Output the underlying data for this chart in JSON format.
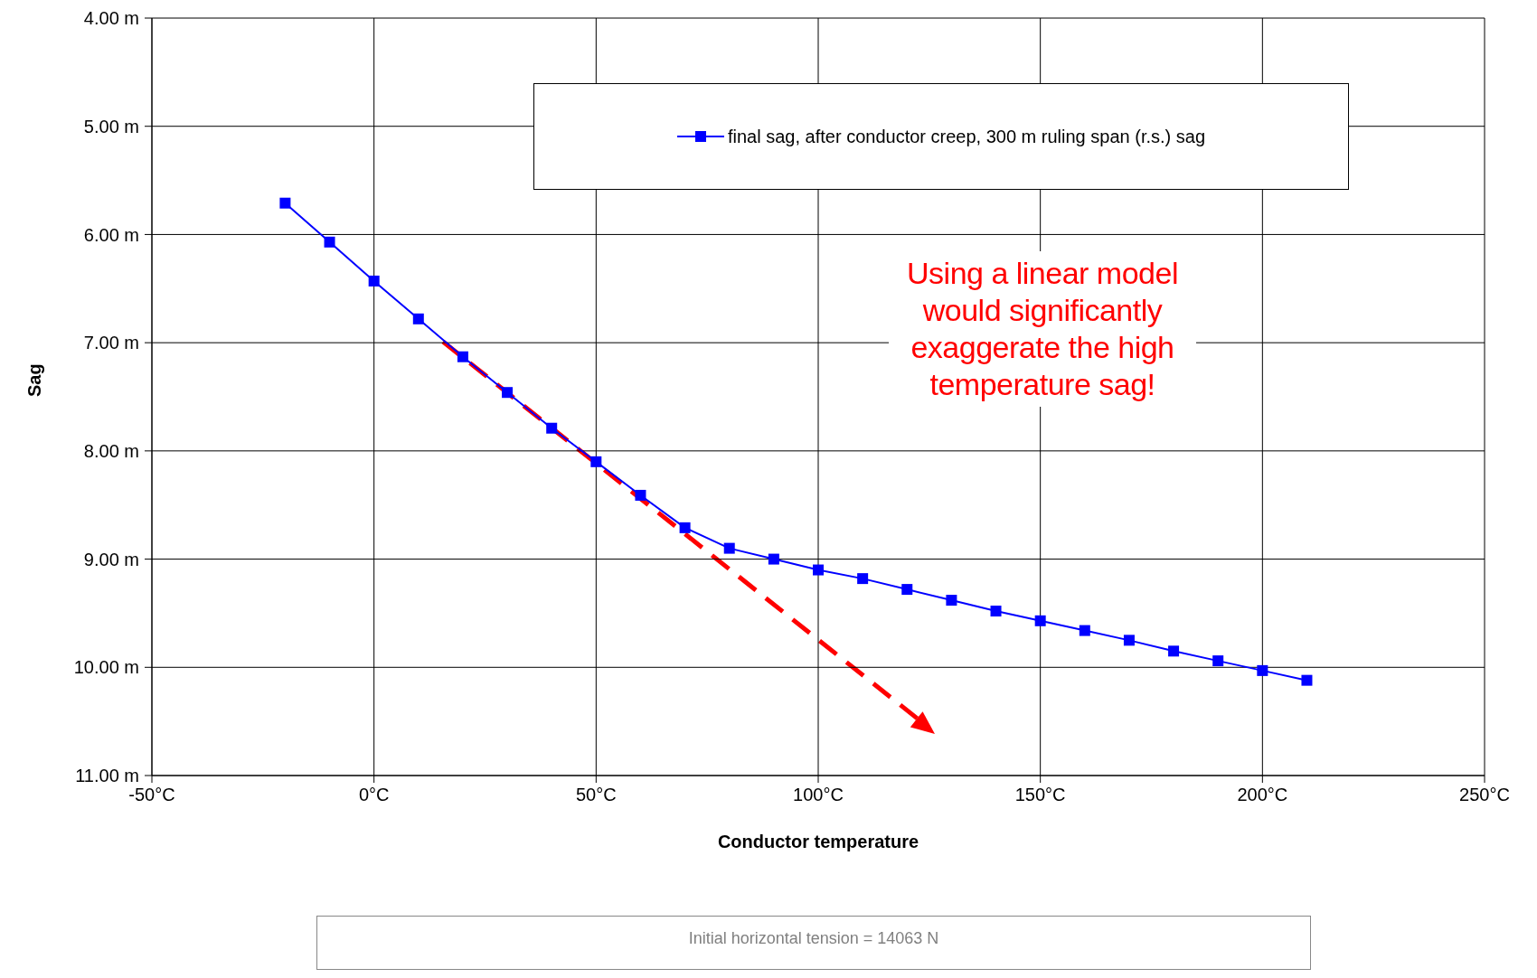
{
  "chart_data": {
    "type": "line",
    "xlabel": "Conductor temperature",
    "ylabel": "Sag",
    "xlim": [
      -50,
      250
    ],
    "xticks": [
      {
        "value": -50,
        "label": "-50°C"
      },
      {
        "value": 0,
        "label": "0°C"
      },
      {
        "value": 50,
        "label": "50°C"
      },
      {
        "value": 100,
        "label": "100°C"
      },
      {
        "value": 150,
        "label": "150°C"
      },
      {
        "value": 200,
        "label": "200°C"
      },
      {
        "value": 250,
        "label": "250°C"
      }
    ],
    "ylim": [
      11,
      4
    ],
    "yticks": [
      {
        "value": 4,
        "label": "4.00 m"
      },
      {
        "value": 5,
        "label": "5.00 m"
      },
      {
        "value": 6,
        "label": "6.00 m"
      },
      {
        "value": 7,
        "label": "7.00 m"
      },
      {
        "value": 8,
        "label": "8.00 m"
      },
      {
        "value": 9,
        "label": "9.00 m"
      },
      {
        "value": 10,
        "label": "10.00 m"
      },
      {
        "value": 11,
        "label": "11.00 m"
      }
    ],
    "grid": true,
    "legend": "top right",
    "marker": "square",
    "line_style": "solid",
    "x": [
      -20,
      -10,
      0,
      10,
      20,
      30,
      40,
      50,
      60,
      70,
      80,
      90,
      100,
      110,
      120,
      130,
      140,
      150,
      160,
      170,
      180,
      190,
      200,
      210
    ],
    "series": [
      {
        "name": "final sag, after conductor creep, 300 m ruling span (r.s.) sag",
        "color": "#0000ff",
        "values": [
          5.71,
          6.07,
          6.43,
          6.78,
          7.13,
          7.46,
          7.79,
          8.1,
          8.41,
          8.71,
          8.9,
          9.0,
          9.1,
          9.18,
          9.28,
          9.38,
          9.48,
          9.57,
          9.66,
          9.75,
          9.85,
          9.94,
          10.03,
          10.12
        ]
      }
    ],
    "annotations": [
      "Using a linear model would significantly exaggerate the high temperature sag!",
      "Initial horizontal tension = 14063 N"
    ]
  }
}
